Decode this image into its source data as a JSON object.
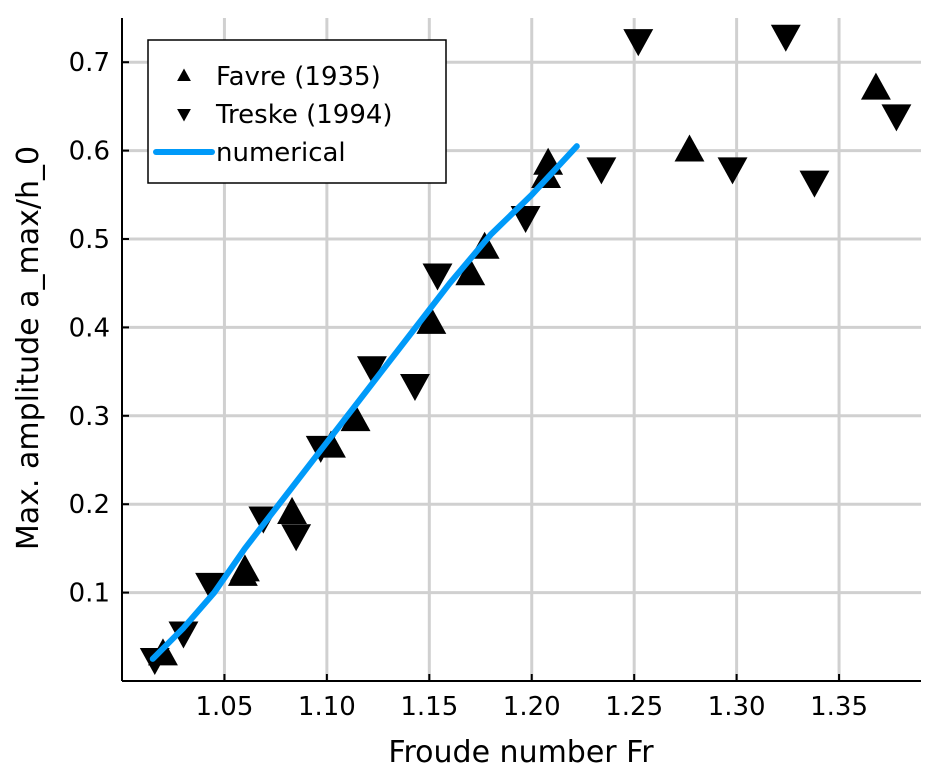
{
  "chart_data": {
    "type": "scatter",
    "xlabel": "Froude number Fr",
    "ylabel": "Max. amplitude a_max/h_0",
    "xlim": [
      1.0,
      1.39
    ],
    "ylim": [
      0.0,
      0.75
    ],
    "xticks": [
      1.05,
      1.1,
      1.15,
      1.2,
      1.25,
      1.3,
      1.35
    ],
    "xtick_labels": [
      "1.05",
      "1.10",
      "1.15",
      "1.20",
      "1.25",
      "1.30",
      "1.35"
    ],
    "yticks": [
      0.1,
      0.2,
      0.3,
      0.4,
      0.5,
      0.6,
      0.7
    ],
    "ytick_labels": [
      "0.1",
      "0.2",
      "0.3",
      "0.4",
      "0.5",
      "0.6",
      "0.7"
    ],
    "grid": true,
    "legend_position": "top-left",
    "series": [
      {
        "name": "Favre (1935)",
        "kind": "scatter",
        "marker": "triangle-up",
        "color": "#000000",
        "points": [
          [
            1.02,
            0.03
          ],
          [
            1.059,
            0.12
          ],
          [
            1.06,
            0.125
          ],
          [
            1.083,
            0.19
          ],
          [
            1.102,
            0.265
          ],
          [
            1.114,
            0.295
          ],
          [
            1.151,
            0.405
          ],
          [
            1.17,
            0.46
          ],
          [
            1.177,
            0.49
          ],
          [
            1.207,
            0.57
          ],
          [
            1.208,
            0.585
          ],
          [
            1.277,
            0.6
          ],
          [
            1.368,
            0.67
          ]
        ]
      },
      {
        "name": "Treske (1994)",
        "kind": "scatter",
        "marker": "triangle-down",
        "color": "#000000",
        "points": [
          [
            1.016,
            0.025
          ],
          [
            1.03,
            0.055
          ],
          [
            1.043,
            0.11
          ],
          [
            1.069,
            0.185
          ],
          [
            1.085,
            0.165
          ],
          [
            1.097,
            0.265
          ],
          [
            1.122,
            0.355
          ],
          [
            1.143,
            0.335
          ],
          [
            1.154,
            0.46
          ],
          [
            1.197,
            0.525
          ],
          [
            1.234,
            0.58
          ],
          [
            1.252,
            0.725
          ],
          [
            1.298,
            0.58
          ],
          [
            1.324,
            0.73
          ],
          [
            1.338,
            0.565
          ],
          [
            1.378,
            0.64
          ]
        ]
      },
      {
        "name": "numerical",
        "kind": "line",
        "color": "#009af9",
        "points": [
          [
            1.015,
            0.025
          ],
          [
            1.03,
            0.06
          ],
          [
            1.045,
            0.1
          ],
          [
            1.06,
            0.15
          ],
          [
            1.08,
            0.21
          ],
          [
            1.1,
            0.27
          ],
          [
            1.12,
            0.33
          ],
          [
            1.14,
            0.39
          ],
          [
            1.16,
            0.45
          ],
          [
            1.18,
            0.505
          ],
          [
            1.2,
            0.55
          ],
          [
            1.222,
            0.605
          ]
        ]
      }
    ]
  }
}
